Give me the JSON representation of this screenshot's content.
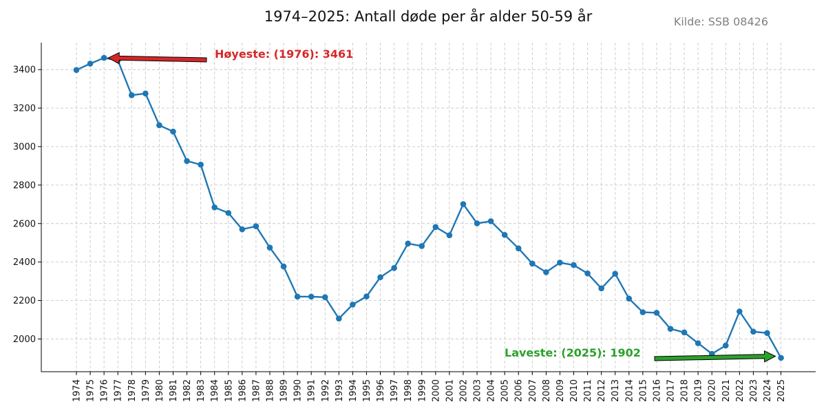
{
  "chart_data": {
    "type": "line",
    "title": "1974–2025: Antall døde per år alder 50-59 år",
    "source": "Kilde: SSB 08426",
    "xlabel": "",
    "ylabel": "",
    "ylim": [
      1830,
      3540
    ],
    "yticks": [
      2000,
      2200,
      2400,
      2600,
      2800,
      3000,
      3200,
      3400
    ],
    "grid": true,
    "series_color": "#1f77b4",
    "x": [
      "1974",
      "1975",
      "1976",
      "1977",
      "1978",
      "1979",
      "1980",
      "1981",
      "1982",
      "1983",
      "1984",
      "1985",
      "1986",
      "1987",
      "1988",
      "1989",
      "1990",
      "1991",
      "1992",
      "1993",
      "1994",
      "1995",
      "1996",
      "1997",
      "1998",
      "1999",
      "2000",
      "2001",
      "2002",
      "2003",
      "2004",
      "2005",
      "2006",
      "2007",
      "2008",
      "2009",
      "2010",
      "2011",
      "2012",
      "2013",
      "2014",
      "2015",
      "2016",
      "2017",
      "2018",
      "2019",
      "2020",
      "2021",
      "2022",
      "2023",
      "2024",
      "2025"
    ],
    "values": [
      3398,
      3431,
      3461,
      3448,
      3267,
      3276,
      3111,
      3078,
      2925,
      2906,
      2684,
      2655,
      2570,
      2586,
      2475,
      2377,
      2220,
      2220,
      2217,
      2106,
      2179,
      2221,
      2321,
      2369,
      2496,
      2483,
      2582,
      2539,
      2701,
      2601,
      2612,
      2541,
      2471,
      2392,
      2347,
      2397,
      2384,
      2341,
      2263,
      2339,
      2210,
      2139,
      2136,
      2053,
      2034,
      1978,
      1923,
      1966,
      2143,
      2038,
      2031,
      1902
    ],
    "annotations": [
      {
        "text": "Høyeste: (1976): 3461",
        "color": "#d62728",
        "point_index": 2
      },
      {
        "text": "Laveste: (2025): 1902",
        "color": "#2ca02c",
        "point_index": 51
      }
    ]
  }
}
